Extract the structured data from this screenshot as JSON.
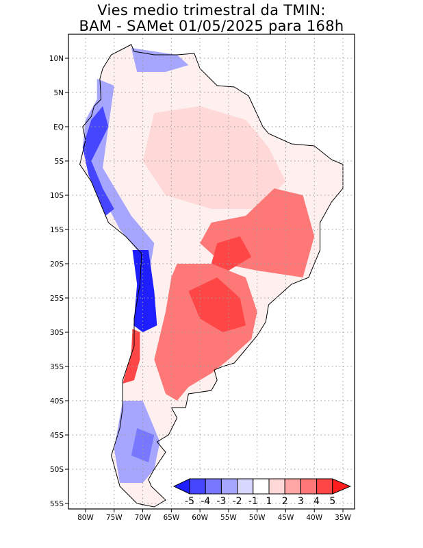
{
  "title": {
    "line1": "Vies medio trimestral da TMIN:",
    "line2": "BAM - SAMet 01/05/2025  para 168h"
  },
  "lat_labels": [
    "10N",
    "5N",
    "EQ",
    "5S",
    "10S",
    "15S",
    "20S",
    "25S",
    "30S",
    "35S",
    "40S",
    "45S",
    "50S",
    "55S"
  ],
  "lat_values": [
    10,
    5,
    0,
    -5,
    -10,
    -15,
    -20,
    -25,
    -30,
    -35,
    -40,
    -45,
    -50,
    -55
  ],
  "lon_labels": [
    "80W",
    "75W",
    "70W",
    "65W",
    "60W",
    "55W",
    "50W",
    "45W",
    "40W",
    "35W"
  ],
  "lon_values": [
    -80,
    -75,
    -70,
    -65,
    -60,
    -55,
    -50,
    -45,
    -40,
    -35
  ],
  "colorbar": {
    "labels": [
      "-5",
      "-4",
      "-3",
      "-2",
      "-1",
      "1",
      "2",
      "3",
      "4",
      "5"
    ],
    "colors": [
      "#1e1eff",
      "#4646ff",
      "#7878ff",
      "#a6a6ff",
      "#d8d8ff",
      "#ffffff",
      "#ffd8d8",
      "#ffa6a6",
      "#ff7878",
      "#ff4646",
      "#ff1e1e"
    ]
  }
}
